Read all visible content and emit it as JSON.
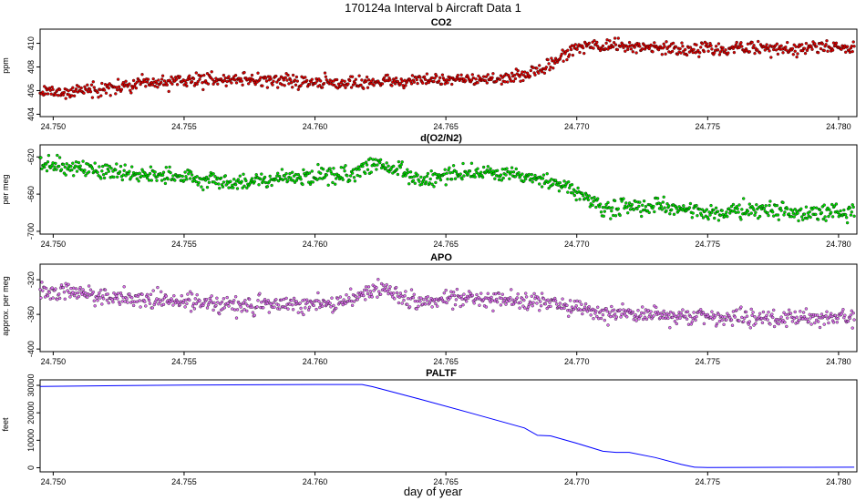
{
  "figure": {
    "title": "170124a   Interval b Aircraft Data 1",
    "xlabel": "day of year"
  },
  "colors": {
    "co2": "#ff0000",
    "o2n2": "#00ee00",
    "apo": "#ee82ee",
    "paltf": "#0000ff",
    "outline": "#000000"
  },
  "chart_data": [
    {
      "type": "scatter",
      "title": "CO2",
      "ylabel": "ppm",
      "xlim": [
        24.7495,
        24.7807
      ],
      "ylim": [
        403.8,
        411.2
      ],
      "xticks": [
        24.75,
        24.755,
        24.76,
        24.765,
        24.77,
        24.775,
        24.78
      ],
      "xtick_labels": [
        "24.750",
        "24.755",
        "24.760",
        "24.765",
        "24.770",
        "24.775",
        "24.780"
      ],
      "yticks": [
        404,
        406,
        408,
        410
      ],
      "ytick_labels": [
        "404",
        "406",
        "408",
        "410"
      ],
      "series": [
        {
          "name": "CO2",
          "x_start": 24.7495,
          "x_end": 24.7806,
          "n_points": 950,
          "noise": 0.55,
          "trend_x": [
            24.7495,
            24.751,
            24.753,
            24.755,
            24.757,
            24.759,
            24.761,
            24.763,
            24.765,
            24.767,
            24.768,
            24.769,
            24.77,
            24.772,
            24.774,
            24.776,
            24.778,
            24.7806
          ],
          "trend_y": [
            405.8,
            406.0,
            406.4,
            406.9,
            407.0,
            406.8,
            406.6,
            406.8,
            407.0,
            406.9,
            407.3,
            408.2,
            409.7,
            409.8,
            409.4,
            409.6,
            409.6,
            409.7
          ]
        }
      ]
    },
    {
      "type": "scatter",
      "title": "d(O2/N2)",
      "ylabel": "per meg",
      "xlim": [
        24.7495,
        24.7807
      ],
      "ylim": [
        -703,
        -607
      ],
      "xticks": [
        24.75,
        24.755,
        24.76,
        24.765,
        24.77,
        24.775,
        24.78
      ],
      "xtick_labels": [
        "24.750",
        "24.755",
        "24.760",
        "24.765",
        "24.770",
        "24.775",
        "24.780"
      ],
      "yticks": [
        -620,
        -660,
        -700
      ],
      "ytick_labels": [
        "-620",
        "-660",
        "-700"
      ],
      "series": [
        {
          "name": "d(O2/N2)",
          "x_start": 24.7495,
          "x_end": 24.7806,
          "n_points": 950,
          "noise": 9,
          "trend_x": [
            24.7495,
            24.751,
            24.753,
            24.755,
            24.757,
            24.759,
            24.761,
            24.7625,
            24.764,
            24.766,
            24.768,
            24.7695,
            24.771,
            24.773,
            24.775,
            24.777,
            24.779,
            24.7806
          ],
          "trend_y": [
            -625,
            -632,
            -637,
            -642,
            -648,
            -643,
            -639,
            -628,
            -644,
            -637,
            -642,
            -650,
            -676,
            -673,
            -680,
            -677,
            -681,
            -678
          ]
        }
      ]
    },
    {
      "type": "scatter",
      "title": "APO",
      "ylabel": "approx. per meg",
      "xlim": [
        24.7495,
        24.7807
      ],
      "ylim": [
        -403,
        -302
      ],
      "xticks": [
        24.75,
        24.755,
        24.76,
        24.765,
        24.77,
        24.775,
        24.78
      ],
      "xtick_labels": [
        "24.750",
        "24.755",
        "24.760",
        "24.765",
        "24.770",
        "24.775",
        "24.780"
      ],
      "yticks": [
        -320,
        -360,
        -400
      ],
      "ytick_labels": [
        "-320",
        "-360",
        "-400"
      ],
      "series": [
        {
          "name": "APO",
          "x_start": 24.7495,
          "x_end": 24.7806,
          "n_points": 950,
          "noise": 10,
          "trend_x": [
            24.7495,
            24.751,
            24.753,
            24.755,
            24.757,
            24.759,
            24.761,
            24.7625,
            24.764,
            24.766,
            24.768,
            24.7695,
            24.771,
            24.773,
            24.775,
            24.777,
            24.779,
            24.7806
          ],
          "trend_y": [
            -332,
            -336,
            -341,
            -345,
            -350,
            -348,
            -346,
            -330,
            -346,
            -341,
            -344,
            -349,
            -359,
            -360,
            -363,
            -364,
            -366,
            -364
          ]
        }
      ]
    },
    {
      "type": "line",
      "title": "PALTF",
      "ylabel": "feet",
      "xlim": [
        24.7495,
        24.7807
      ],
      "ylim": [
        -1500,
        32000
      ],
      "xticks": [
        24.75,
        24.755,
        24.76,
        24.765,
        24.77,
        24.775,
        24.78
      ],
      "xtick_labels": [
        "24.750",
        "24.755",
        "24.760",
        "24.765",
        "24.770",
        "24.775",
        "24.780"
      ],
      "yticks": [
        0,
        10000,
        20000,
        30000
      ],
      "ytick_labels": [
        "0",
        "10000",
        "20000",
        "30000"
      ],
      "series": [
        {
          "name": "PALTF",
          "x": [
            24.7495,
            24.755,
            24.76,
            24.7618,
            24.7622,
            24.764,
            24.766,
            24.768,
            24.7685,
            24.769,
            24.77,
            24.771,
            24.7715,
            24.772,
            24.773,
            24.774,
            24.7745,
            24.775,
            24.778,
            24.7806
          ],
          "y": [
            29600,
            30100,
            30300,
            30300,
            29500,
            25000,
            19800,
            14500,
            11800,
            11600,
            8900,
            6000,
            5600,
            5600,
            3700,
            1200,
            200,
            100,
            150,
            200
          ]
        }
      ]
    }
  ]
}
